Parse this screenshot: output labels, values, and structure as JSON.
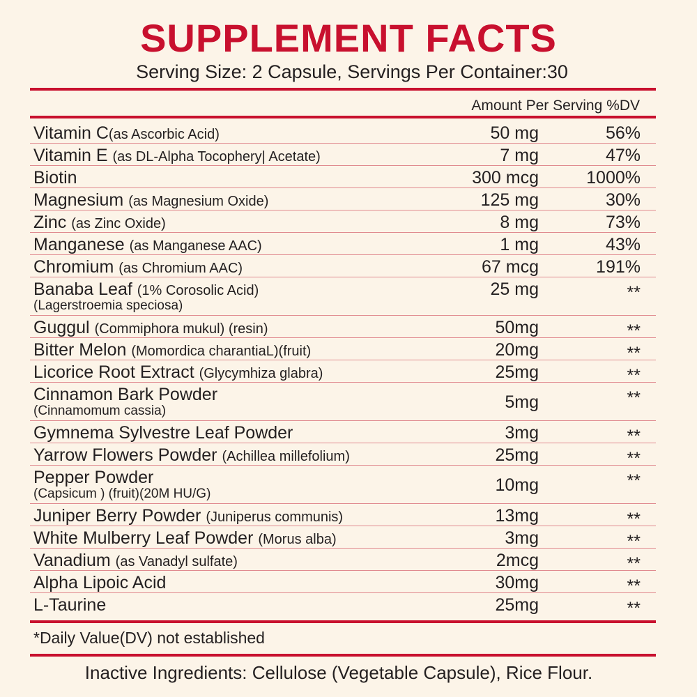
{
  "title": "SUPPLEMENT FACTS",
  "serving": "Serving Size: 2 Capsule, Servings Per Container:30",
  "header": {
    "amount": "Amount Per Serving",
    "dv": "%DV"
  },
  "rows": [
    {
      "name": "Vitamin C",
      "note": "(as Ascorbic Acid)",
      "amount": "50 mg",
      "dv": "56%"
    },
    {
      "name": "Vitamin E",
      "note": "(as DL-Alpha Tocophery| Acetate)",
      "amount": "7 mg",
      "dv": "47%"
    },
    {
      "name": "Biotin",
      "amount": "300 mcg",
      "dv": "1000%"
    },
    {
      "name": "Magnesium",
      "note": "(as Magnesium Oxide)",
      "amount": "125 mg",
      "dv": "30%"
    },
    {
      "name": "Zinc",
      "note": "(as Zinc Oxide)",
      "amount": "8 mg",
      "dv": "73%"
    },
    {
      "name": "Manganese",
      "note": "(as Manganese AAC)",
      "amount": "1 mg",
      "dv": "43%"
    },
    {
      "name": "Chromium",
      "note": "(as Chromium AAC)",
      "amount": "67 mcg",
      "dv": "191%"
    },
    {
      "name": "Banaba Leaf",
      "note": "(1% Corosolic Acid)",
      "line2": "(Lagerstroemia speciosa)",
      "amount": "25 mg",
      "dv": "**"
    },
    {
      "name": "Guggul",
      "note": "(Commiphora mukul) (resin)",
      "amount": "50mg",
      "dv": "**"
    },
    {
      "name": "Bitter Melon",
      "note": "(Momordica charantiaL)(fruit)",
      "amount": "20mg",
      "dv": "**"
    },
    {
      "name": "Licorice Root Extract",
      "note": "(Glycymhiza glabra)",
      "amount": "25mg",
      "dv": "**"
    },
    {
      "name": "Cinnamon Bark Powder",
      "line2": "(Cinnamomum cassia)",
      "amount": "5mg",
      "dv": "**"
    },
    {
      "name": "Gymnema Sylvestre Leaf Powder",
      "amount": "3mg",
      "dv": "**"
    },
    {
      "name": "Yarrow Flowers Powder",
      "note": "(Achillea millefolium)",
      "amount": "25mg",
      "dv": "**"
    },
    {
      "name": "Pepper Powder",
      "line2": "(Capsicum ) (fruit)(20M HU/G)",
      "amount": "10mg",
      "dv": "**"
    },
    {
      "name": "Juniper Berry Powder",
      "note": "(Juniperus communis)",
      "amount": "13mg",
      "dv": "**"
    },
    {
      "name": "White Mulberry Leaf Powder",
      "note": "(Morus alba)",
      "amount": "3mg",
      "dv": "**"
    },
    {
      "name": "Vanadium",
      "note": "(as Vanadyl sulfate)",
      "amount": "2mcg",
      "dv": "**"
    },
    {
      "name": "Alpha Lipoic Acid",
      "amount": "30mg",
      "dv": "**"
    },
    {
      "name": "L-Taurine",
      "amount": "25mg",
      "dv": "**"
    }
  ],
  "footnote": "*Daily Value(DV) not established",
  "inactive": "Inactive Ingredients: Cellulose (Vegetable Capsule), Rice Flour."
}
